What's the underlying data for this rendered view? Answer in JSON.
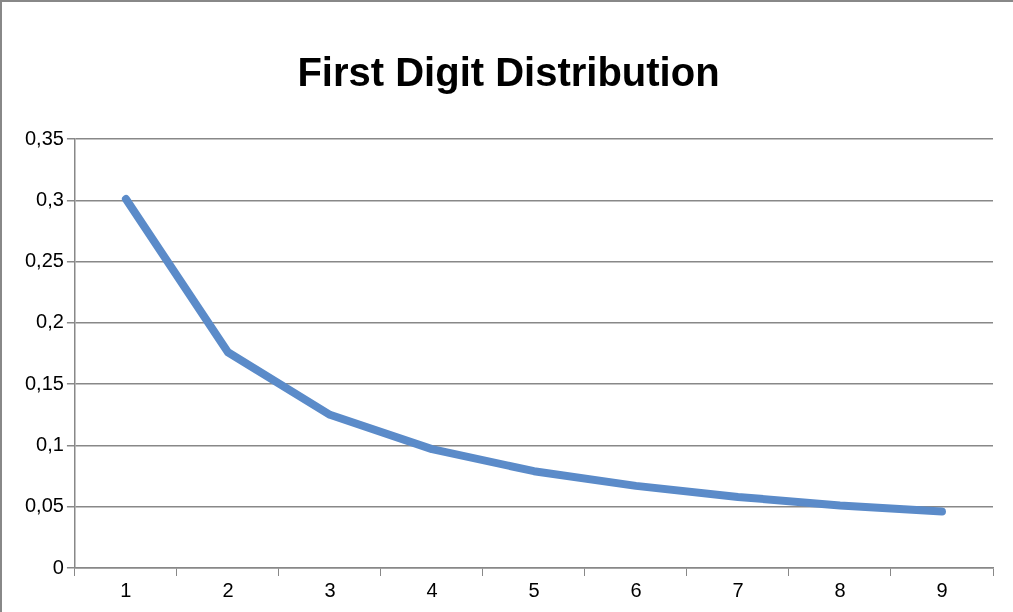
{
  "chart_data": {
    "type": "line",
    "title": "First Digit Distribution",
    "categories": [
      "1",
      "2",
      "3",
      "4",
      "5",
      "6",
      "7",
      "8",
      "9"
    ],
    "series": [
      {
        "color": "#5b8bc9",
        "values": [
          0.301,
          0.176,
          0.125,
          0.097,
          0.079,
          0.067,
          0.058,
          0.051,
          0.046
        ]
      }
    ],
    "ylim": [
      0,
      0.35
    ],
    "yticks": [
      {
        "value": 0,
        "label": "0"
      },
      {
        "value": 0.05,
        "label": "0,05"
      },
      {
        "value": 0.1,
        "label": "0,1"
      },
      {
        "value": 0.15,
        "label": "0,15"
      },
      {
        "value": 0.2,
        "label": "0,2"
      },
      {
        "value": 0.25,
        "label": "0,25"
      },
      {
        "value": 0.3,
        "label": "0,3"
      },
      {
        "value": 0.35,
        "label": "0,35"
      }
    ],
    "grid": "y",
    "legend": false,
    "marker": "none",
    "line_style": "solid"
  }
}
